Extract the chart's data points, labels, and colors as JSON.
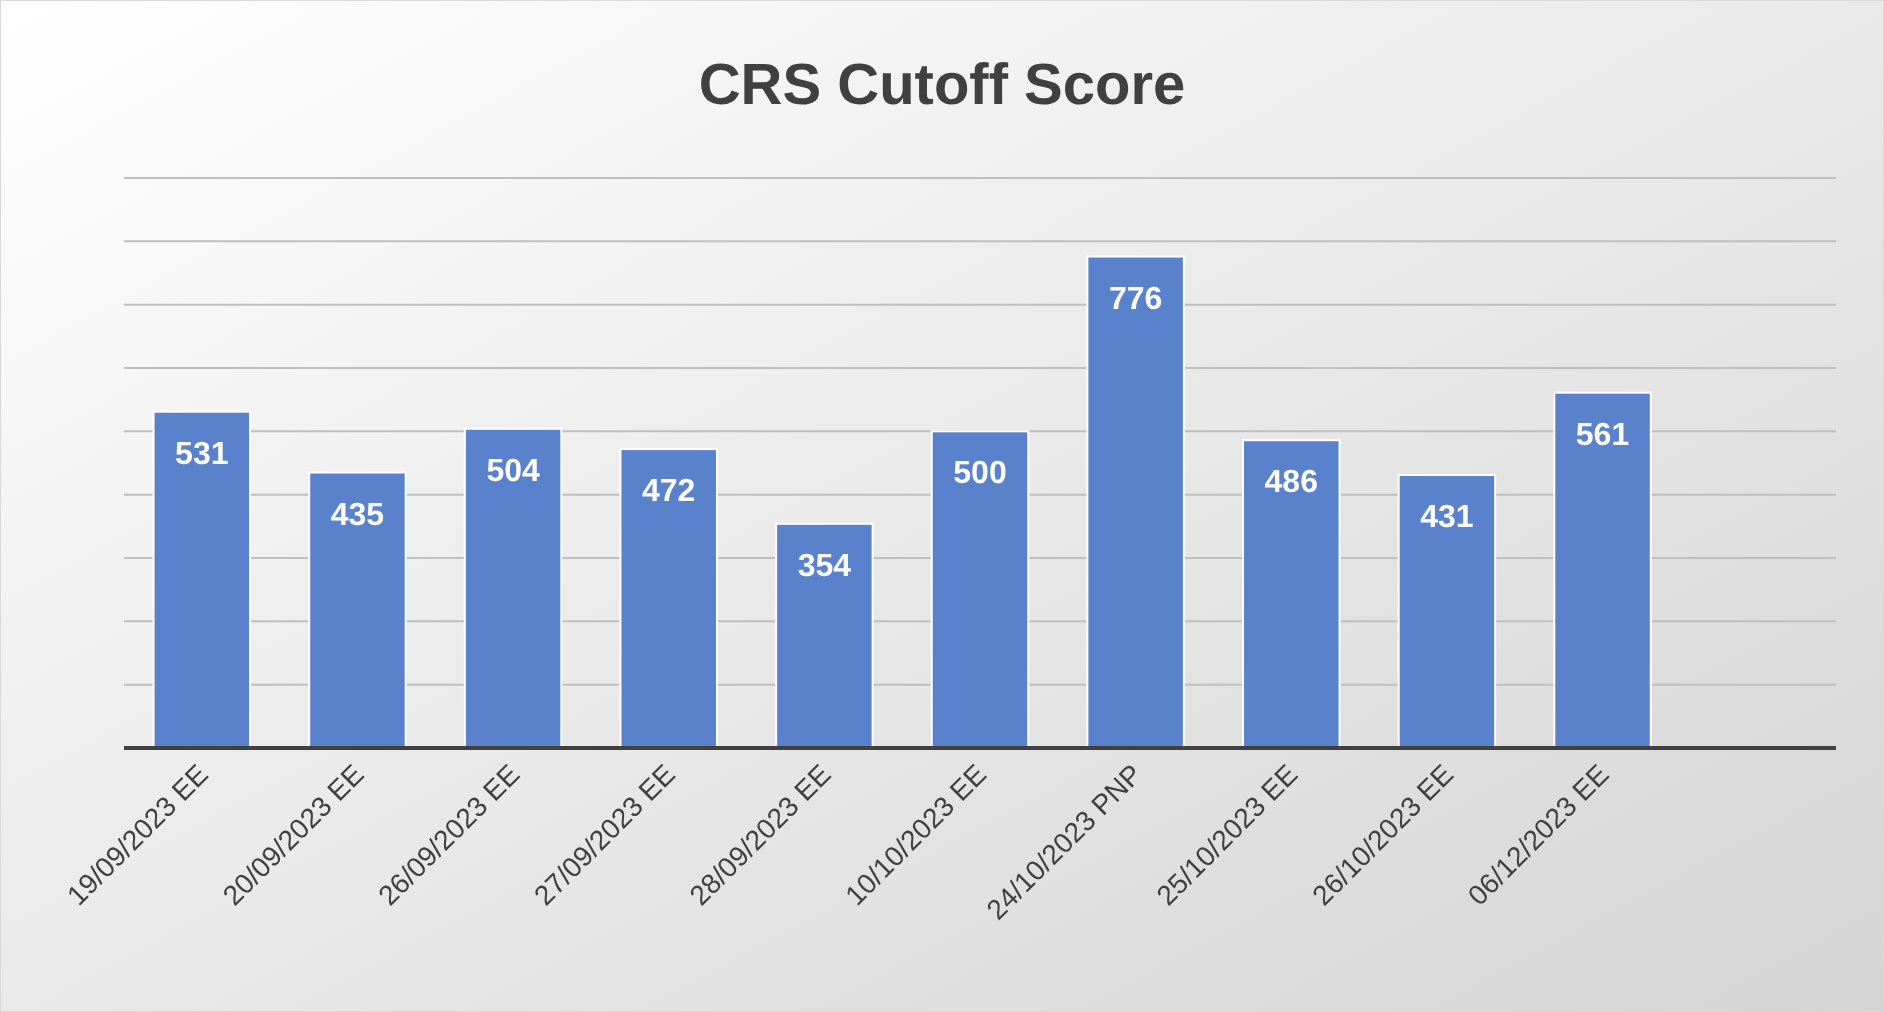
{
  "chart_data": {
    "type": "bar",
    "title": "CRS Cutoff Score",
    "categories": [
      "19/09/2023 EE",
      "20/09/2023 EE",
      "26/09/2023 EE",
      "27/09/2023 EE",
      "28/09/2023 EE",
      "10/10/2023 EE",
      "24/10/2023 PNP",
      "25/10/2023 EE",
      "26/10/2023 EE",
      "06/12/2023 EE",
      null
    ],
    "values": [
      531,
      435,
      504,
      472,
      354,
      500,
      776,
      486,
      431,
      561,
      null
    ],
    "color": "#5a82cc",
    "ylim": [
      0,
      900
    ],
    "yticks": [
      {
        "value": 0,
        "label": null
      },
      {
        "value": 100,
        "label": null
      },
      {
        "value": 200,
        "label": null
      },
      {
        "value": 300,
        "label": null
      },
      {
        "value": 400,
        "label": null
      },
      {
        "value": 500,
        "label": null
      },
      {
        "value": 600,
        "label": null
      },
      {
        "value": 700,
        "label": null
      },
      {
        "value": 800,
        "label": null
      },
      {
        "value": 900,
        "label": null
      }
    ],
    "grid": "y",
    "tick_labels": "x",
    "data_labels": true
  }
}
